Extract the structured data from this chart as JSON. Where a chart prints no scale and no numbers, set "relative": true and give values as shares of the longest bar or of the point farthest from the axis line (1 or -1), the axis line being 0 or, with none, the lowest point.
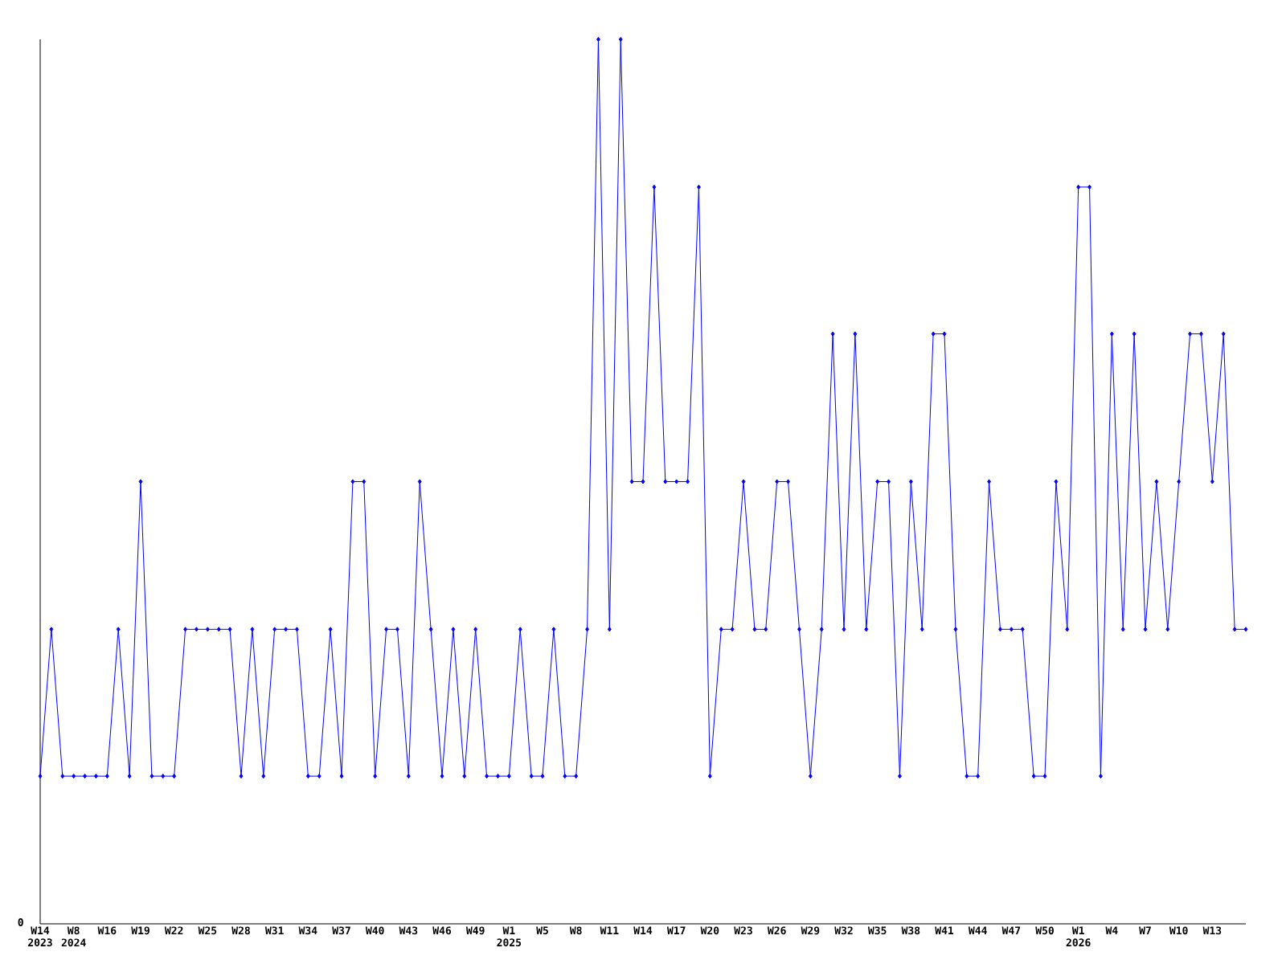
{
  "chart_data": {
    "type": "line",
    "relative": true,
    "marker": "diamond",
    "line_style": "solid",
    "annotations": [
      "0"
    ],
    "categories": [
      "W14 2023",
      null,
      null,
      "W8 2024",
      null,
      null,
      "W16",
      null,
      null,
      "W19",
      null,
      null,
      "W22",
      null,
      null,
      "W25",
      null,
      null,
      "W28",
      null,
      null,
      "W31",
      null,
      null,
      "W34",
      null,
      null,
      "W37",
      null,
      null,
      "W40",
      null,
      null,
      "W43",
      null,
      null,
      "W46",
      null,
      null,
      "W49",
      null,
      null,
      "W1 2025",
      null,
      null,
      "W5",
      null,
      null,
      "W8",
      null,
      null,
      "W11",
      null,
      null,
      "W14",
      null,
      null,
      "W17",
      null,
      null,
      "W20",
      null,
      null,
      "W23",
      null,
      null,
      "W26",
      null,
      null,
      "W29",
      null,
      null,
      "W32",
      null,
      null,
      "W35",
      null,
      null,
      "W38",
      null,
      null,
      "W41",
      null,
      null,
      "W44",
      null,
      null,
      "W47",
      null,
      null,
      "W50",
      null,
      null,
      "W1 2026",
      null,
      null,
      "W4",
      null,
      null,
      "W7",
      null,
      null,
      "W10",
      null,
      null,
      "W13",
      null,
      null,
      null
    ],
    "series": [
      {
        "color": "#0000ff",
        "values": [
          0.167,
          0.333,
          0.167,
          0.167,
          0.167,
          0.167,
          0.167,
          0.333,
          0.167,
          0.5,
          0.167,
          0.167,
          0.167,
          0.333,
          0.333,
          0.333,
          0.333,
          0.333,
          0.167,
          0.333,
          0.167,
          0.333,
          0.333,
          0.333,
          0.167,
          0.167,
          0.333,
          0.167,
          0.5,
          0.5,
          0.167,
          0.333,
          0.333,
          0.167,
          0.5,
          0.333,
          0.167,
          0.333,
          0.167,
          0.333,
          0.167,
          0.167,
          0.167,
          0.333,
          0.167,
          0.167,
          0.333,
          0.167,
          0.167,
          0.333,
          1,
          0.333,
          1,
          0.5,
          0.5,
          0.833,
          0.5,
          0.5,
          0.5,
          0.833,
          0.167,
          0.333,
          0.333,
          0.5,
          0.333,
          0.333,
          0.5,
          0.5,
          0.333,
          0.167,
          0.333,
          0.667,
          0.333,
          0.667,
          0.333,
          0.5,
          0.5,
          0.167,
          0.5,
          0.333,
          0.667,
          0.667,
          0.333,
          0.167,
          0.167,
          0.5,
          0.333,
          0.333,
          0.333,
          0.167,
          0.167,
          0.5,
          0.333,
          0.833,
          0.833,
          0.167,
          0.667,
          0.333,
          0.667,
          0.333,
          0.5,
          0.333,
          0.5,
          0.667,
          0.667,
          0.5,
          0.667,
          0.333,
          0.333
        ]
      }
    ]
  }
}
